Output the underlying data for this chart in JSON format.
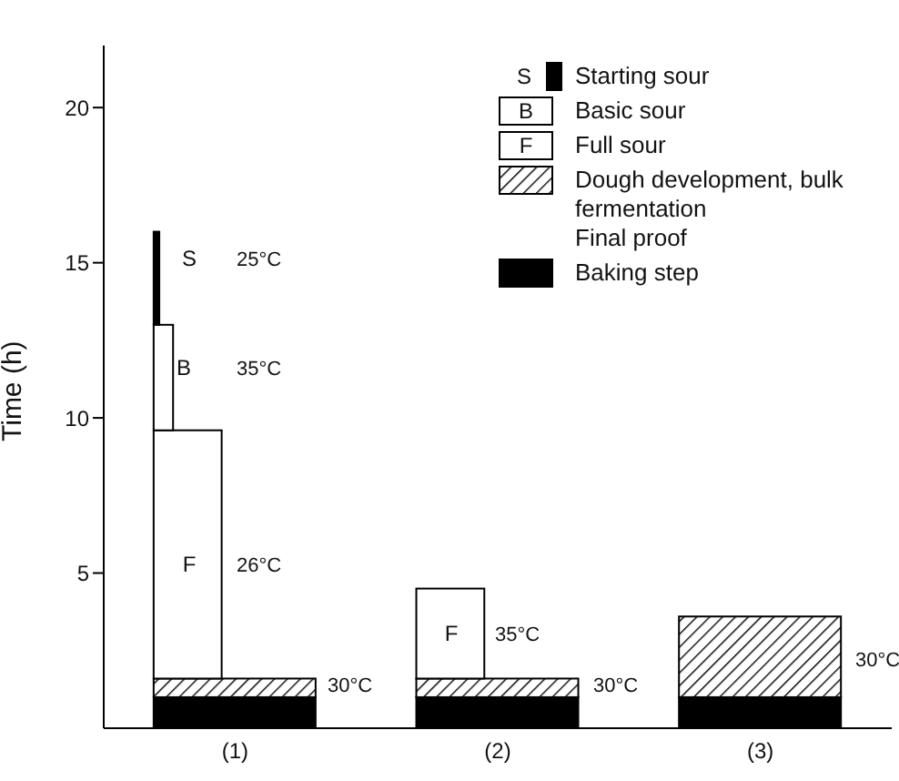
{
  "chart_data": {
    "type": "bar",
    "stacked": true,
    "ylabel": "Time (h)",
    "categories": [
      "(1)",
      "(2)",
      "(3)"
    ],
    "series": [
      {
        "name": "Baking step",
        "color": "#000000",
        "values": [
          1.0,
          1.0,
          1.0
        ]
      },
      {
        "name": "Dough development, bulk fermentation\nFinal proof",
        "color": "#000000",
        "values": [
          0.6,
          0.6,
          2.6
        ]
      },
      {
        "name": "Full sour",
        "color": "#ffffff",
        "values": [
          8.0,
          2.9,
          null
        ]
      },
      {
        "name": "Basic sour",
        "color": "#ffffff",
        "values": [
          3.4,
          null,
          null
        ]
      },
      {
        "name": "Starting sour",
        "color": "#000000",
        "values": [
          3.0,
          null,
          null
        ]
      }
    ],
    "ylim": [
      0,
      22
    ],
    "yticks": [
      5,
      10,
      15,
      20
    ],
    "legend": "top right",
    "annotations": [
      "S",
      "B",
      "F",
      "S",
      "B",
      "F",
      "25°C",
      "35°C",
      "26°C",
      "30°C",
      "F",
      "35°C",
      "30°C",
      "30°C"
    ]
  }
}
